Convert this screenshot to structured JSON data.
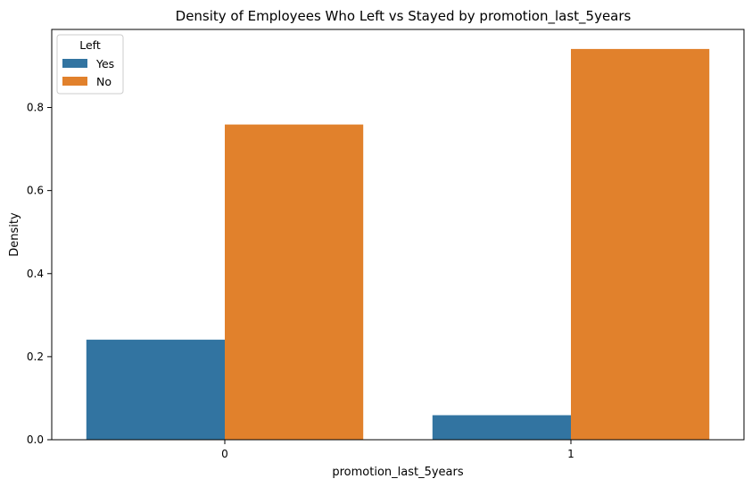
{
  "chart_data": {
    "type": "bar",
    "title": "Density of Employees Who Left vs Stayed by promotion_last_5years",
    "xlabel": "promotion_last_5years",
    "ylabel": "Density",
    "categories": [
      "0",
      "1"
    ],
    "series": [
      {
        "name": "Yes",
        "color": "#3274a1",
        "values": [
          0.241,
          0.059
        ]
      },
      {
        "name": "No",
        "color": "#e1812c",
        "values": [
          0.759,
          0.941
        ]
      }
    ],
    "ylim": [
      0,
      0.988
    ],
    "yticks": [
      0.0,
      0.2,
      0.4,
      0.6,
      0.8
    ],
    "ytick_labels": [
      "0.0",
      "0.2",
      "0.4",
      "0.6",
      "0.8"
    ],
    "legend": {
      "title": "Left",
      "position": "top-left"
    },
    "grid": false
  }
}
